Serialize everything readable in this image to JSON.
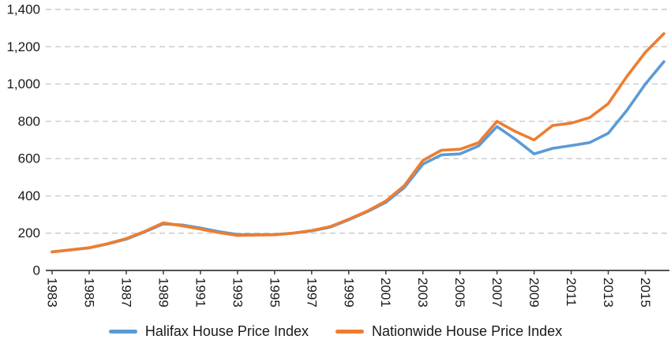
{
  "chart_data": {
    "type": "line",
    "title": "",
    "xlabel": "",
    "ylabel": "",
    "ylim": [
      0,
      1400
    ],
    "grid": "horizontal-dashed",
    "legend_position": "bottom-center",
    "axis_color": "#3a3a3a",
    "gridline_color": "#c9c9c9",
    "x": [
      1983,
      1984,
      1985,
      1986,
      1987,
      1988,
      1989,
      1990,
      1991,
      1992,
      1993,
      1994,
      1995,
      1996,
      1997,
      1998,
      1999,
      2000,
      2001,
      2002,
      2003,
      2004,
      2005,
      2006,
      2007,
      2008,
      2009,
      2010,
      2011,
      2012,
      2013,
      2014,
      2015,
      2016
    ],
    "x_labeled_years": [
      1983,
      1985,
      1987,
      1989,
      1991,
      1993,
      1995,
      1997,
      1999,
      2001,
      2003,
      2005,
      2007,
      2009,
      2011,
      2013,
      2015
    ],
    "x_tick_labels": [
      "1983",
      "1985",
      "1987",
      "1989",
      "1991",
      "1993",
      "1995",
      "1997",
      "1999",
      "2001",
      "2003",
      "2005",
      "2007",
      "2009",
      "2011",
      "2013",
      "2015"
    ],
    "y_ticks": [
      {
        "value": 0,
        "label": "0"
      },
      {
        "value": 200,
        "label": "200"
      },
      {
        "value": 400,
        "label": "400"
      },
      {
        "value": 600,
        "label": "600"
      },
      {
        "value": 800,
        "label": "800"
      },
      {
        "value": 1000,
        "label": "1,000"
      },
      {
        "value": 1200,
        "label": "1,200"
      },
      {
        "value": 1400,
        "label": "1,400"
      }
    ],
    "series": [
      {
        "id": "halifax",
        "name": "Halifax House Price Index",
        "color": "#5B9BD5",
        "values": [
          100,
          110,
          121,
          142,
          168,
          207,
          250,
          244,
          228,
          208,
          193,
          192,
          192,
          200,
          212,
          232,
          272,
          315,
          365,
          445,
          570,
          620,
          625,
          668,
          772,
          703,
          625,
          655,
          670,
          686,
          736,
          858,
          1000,
          1120
        ]
      },
      {
        "id": "nationwide",
        "name": "Nationwide House Price Index",
        "color": "#ED7D31",
        "values": [
          100,
          111,
          122,
          144,
          171,
          210,
          255,
          240,
          222,
          203,
          188,
          190,
          191,
          200,
          214,
          235,
          275,
          318,
          372,
          455,
          590,
          645,
          650,
          685,
          800,
          745,
          700,
          778,
          790,
          820,
          895,
          1040,
          1170,
          1270
        ]
      }
    ]
  }
}
